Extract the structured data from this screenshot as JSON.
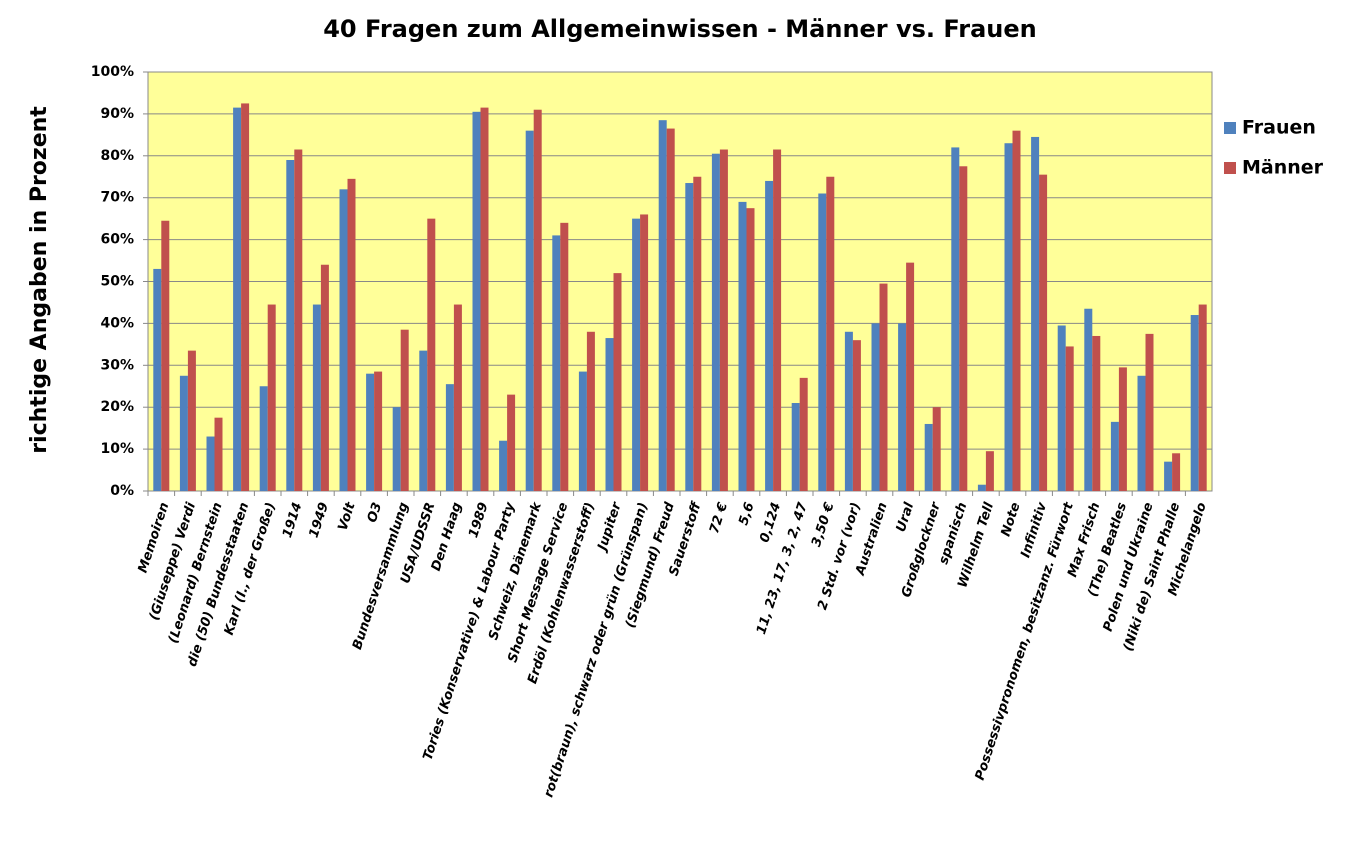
{
  "chart_data": {
    "type": "bar",
    "title": "40 Fragen zum Allgemeinwissen - Männer vs. Frauen",
    "y_label": "richtige Angaben in Prozent",
    "categories": [
      "Memoiren",
      "(Giuseppe) Verdi",
      "(Leonard) Bernstein",
      "die (50) Bundesstaaten",
      "Karl (I., der Große)",
      "1914",
      "1949",
      "Volt",
      "O3",
      "Bundesversammlung",
      "USA/UDSSR",
      "Den Haag",
      "1989",
      "Tories (Konservative) & Labour Party",
      "Schweiz, Dänemark",
      "Short Message Service",
      "Erdöl (Kohlenwasserstoff)",
      "Jupiter",
      "rot(braun), schwarz oder grün (Grünspan)",
      "(Siegmund) Freud",
      "Sauerstoff",
      "72 €",
      "5,6",
      "0,124",
      "11, 23, 17, 3, 2, 47",
      "3,50 €",
      "2 Std. vor (vor)",
      "Australien",
      "Ural",
      "Großglockner",
      "spanisch",
      "Wilhelm Tell",
      "Note",
      "Infinitiv",
      "Possessivpronomen, besitzanz. Fürwort",
      "Max Frisch",
      "(The) Beatles",
      "Polen und Ukraine",
      "(Niki de) Saint Phalle",
      "Michelangelo"
    ],
    "series": [
      {
        "name": "Frauen",
        "color": "#4f81bd",
        "values": [
          53,
          27.5,
          13,
          91.5,
          25,
          79,
          44.5,
          72,
          28,
          20,
          33.5,
          25.5,
          90.5,
          12,
          86,
          61,
          28.5,
          36.5,
          65,
          88.5,
          73.5,
          80.5,
          69,
          74,
          21,
          71,
          38,
          40,
          40,
          16,
          82,
          1.5,
          83,
          84.5,
          39.5,
          43.5,
          16.5,
          27.5,
          7,
          42
        ]
      },
      {
        "name": "Männer",
        "color": "#c0504d",
        "values": [
          64.5,
          33.5,
          17.5,
          92.5,
          44.5,
          81.5,
          54,
          74.5,
          28.5,
          38.5,
          65,
          44.5,
          91.5,
          23,
          91,
          64,
          38,
          52,
          66,
          86.5,
          75,
          81.5,
          67.5,
          81.5,
          27,
          75,
          36,
          49.5,
          54.5,
          20,
          77.5,
          9.5,
          86,
          75.5,
          34.5,
          37,
          29.5,
          37.5,
          9,
          44.5
        ]
      }
    ],
    "ylim": [
      0,
      100
    ],
    "yticks": [
      {
        "value": 0,
        "label": "0%"
      },
      {
        "value": 10,
        "label": "10%"
      },
      {
        "value": 20,
        "label": "20%"
      },
      {
        "value": 30,
        "label": "30%"
      },
      {
        "value": 40,
        "label": "40%"
      },
      {
        "value": 50,
        "label": "50%"
      },
      {
        "value": 60,
        "label": "60%"
      },
      {
        "value": 70,
        "label": "70%"
      },
      {
        "value": 80,
        "label": "80%"
      },
      {
        "value": 90,
        "label": "90%"
      },
      {
        "value": 100,
        "label": "100%"
      }
    ],
    "grid": true,
    "legend": "right",
    "plot_background": "#ffff99"
  }
}
